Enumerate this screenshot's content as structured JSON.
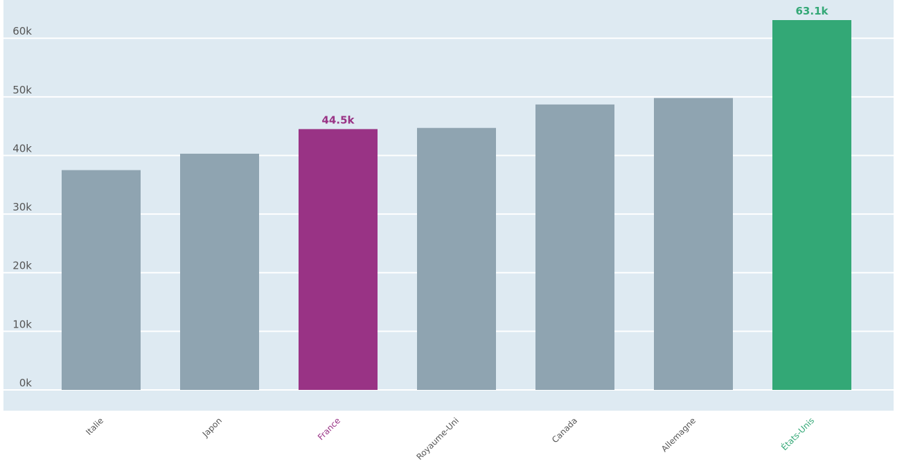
{
  "chart_data": {
    "type": "bar",
    "title": "",
    "xlabel": "",
    "ylabel": "",
    "ylim": [
      0,
      63100
    ],
    "yticks": [
      0,
      10000,
      20000,
      30000,
      40000,
      50000,
      60000
    ],
    "ytick_labels": [
      "0k",
      "10k",
      "20k",
      "30k",
      "40k",
      "50k",
      "60k"
    ],
    "categories": [
      "Italie",
      "Japon",
      "France",
      "Royaume-Uni",
      "Canada",
      "Allemagne",
      "États-Unis"
    ],
    "values": [
      37500,
      40300,
      44500,
      44700,
      48700,
      49800,
      63100
    ],
    "highlights": [
      {
        "category": "France",
        "label": "44.5k",
        "color": "#993385"
      },
      {
        "category": "États-Unis",
        "label": "63.1k",
        "color": "#33a876"
      }
    ],
    "default_bar_color": "#8fa4b1",
    "background_color": "#deeaf2",
    "grid": true,
    "gridline_color": "#ffffff",
    "tick_label_color": "#555555",
    "xtick_rotation": "-45deg"
  }
}
